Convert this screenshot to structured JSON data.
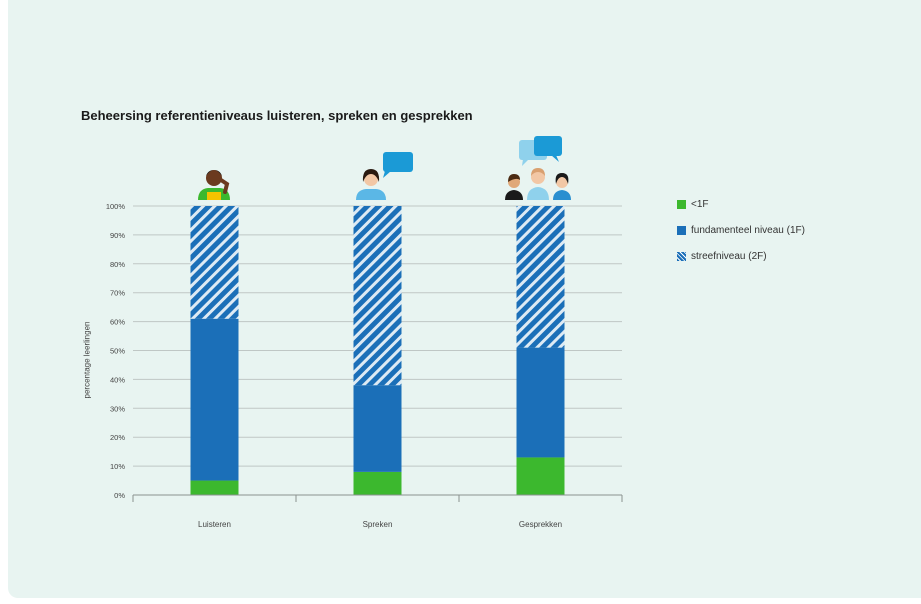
{
  "chart_data": {
    "type": "bar",
    "stacked": true,
    "title": "Beheersing referentieniveaus luisteren, spreken en gesprekken",
    "ylabel": "percentage leerlingen",
    "xlabel": "",
    "ylim": [
      0,
      100
    ],
    "yticks": [
      "0%",
      "10%",
      "20%",
      "30%",
      "40%",
      "50%",
      "60%",
      "70%",
      "80%",
      "90%",
      "100%"
    ],
    "categories": [
      "Luisteren",
      "Spreken",
      "Gesprekken"
    ],
    "series": [
      {
        "name": "<1F",
        "values": [
          5,
          8,
          13
        ],
        "color": "#3cb82e",
        "pattern": "solid"
      },
      {
        "name": "fundamenteel niveau (1F)",
        "values": [
          56,
          30,
          38
        ],
        "color": "#1b6fb8",
        "pattern": "solid"
      },
      {
        "name": "streefniveau (2F)",
        "values": [
          39,
          62,
          49
        ],
        "color": "#1b6fb8",
        "pattern": "hatched"
      }
    ],
    "grid": true,
    "legend_position": "right",
    "icons": [
      "person-listening-icon",
      "person-speaking-icon",
      "group-conversation-icon"
    ]
  }
}
